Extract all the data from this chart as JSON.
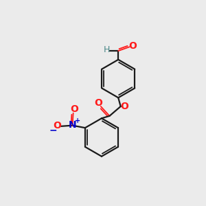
{
  "background_color": "#ebebeb",
  "bond_color": "#1a1a1a",
  "oxygen_color": "#ff1a1a",
  "nitrogen_color": "#0000cc",
  "H_color": "#4a8888",
  "figsize": [
    3.0,
    3.0
  ],
  "dpi": 100,
  "xlim": [
    0,
    10
  ],
  "ylim": [
    0,
    10
  ]
}
